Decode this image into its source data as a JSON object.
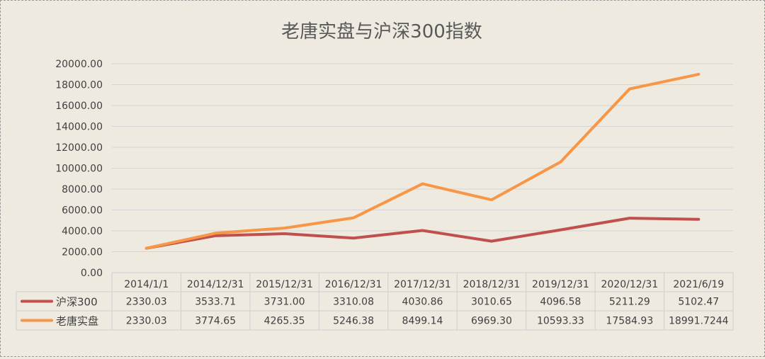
{
  "chart_data": {
    "type": "line",
    "title": "老唐实盘与沪深300指数",
    "categories": [
      "2014/1/1",
      "2014/12/31",
      "2015/12/31",
      "2016/12/31",
      "2017/12/31",
      "2018/12/31",
      "2019/12/31",
      "2020/12/31",
      "2021/6/19"
    ],
    "ylim": [
      0,
      20000
    ],
    "ytick_labels": [
      "0.00",
      "2000.00",
      "4000.00",
      "6000.00",
      "8000.00",
      "10000.00",
      "12000.00",
      "14000.00",
      "16000.00",
      "18000.00",
      "20000.00"
    ],
    "grid": true,
    "legend": "data-table",
    "series": [
      {
        "name": "沪深300",
        "color": "#C0504D",
        "values": [
          2330.03,
          3533.71,
          3731.0,
          3310.08,
          4030.86,
          3010.65,
          4096.58,
          5211.29,
          5102.47
        ],
        "labels": [
          "2330.03",
          "3533.71",
          "3731.00",
          "3310.08",
          "4030.86",
          "3010.65",
          "4096.58",
          "5211.29",
          "5102.47"
        ]
      },
      {
        "name": "老唐实盘",
        "color": "#F79646",
        "values": [
          2330.03,
          3774.65,
          4265.35,
          5246.38,
          8499.14,
          6969.3,
          10593.33,
          17584.93,
          18991.7244
        ],
        "labels": [
          "2330.03",
          "3774.65",
          "4265.35",
          "5246.38",
          "8499.14",
          "6969.30",
          "10593.33",
          "17584.93",
          "18991.7244"
        ]
      }
    ]
  }
}
